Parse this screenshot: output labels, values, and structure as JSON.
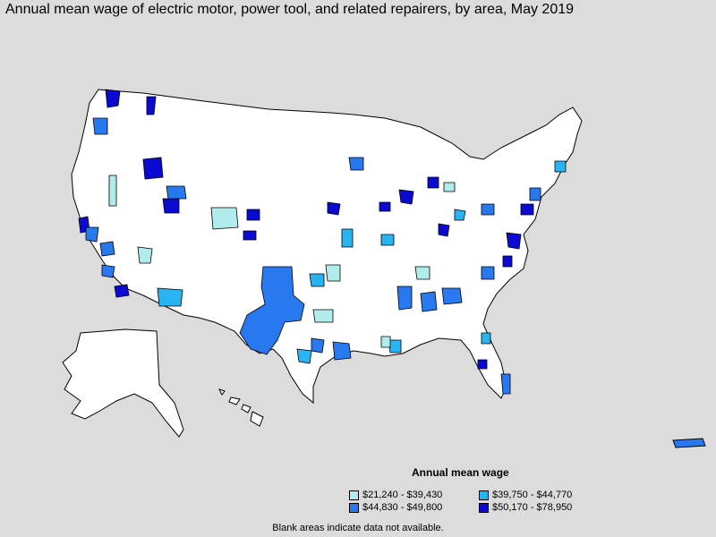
{
  "title": "Annual mean wage of electric motor, power tool, and related repairers, by area, May 2019",
  "legend": {
    "title": "Annual mean wage",
    "items": [
      {
        "label": "$21,240 - $39,430",
        "color": "#b0ecec"
      },
      {
        "label": "$39,750 - $44,770",
        "color": "#28b4f0"
      },
      {
        "label": "$44,830 - $49,800",
        "color": "#2878f0"
      },
      {
        "label": "$50,170 - $78,950",
        "color": "#0a0ad2"
      }
    ]
  },
  "footnote": "Blank areas indicate data not available.",
  "colors": {
    "background": "#dcdcdc",
    "no_data": "#ffffff",
    "border": "#000000"
  }
}
